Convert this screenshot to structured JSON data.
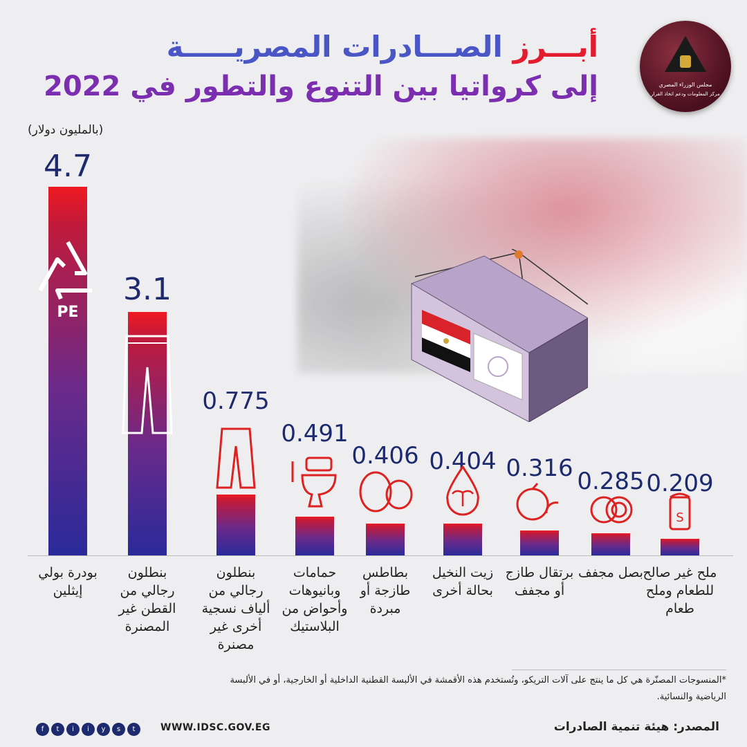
{
  "title": {
    "line1_accent": "أبـــرز",
    "line1_rest": " الصـــادرات المصريـــــة",
    "line2": "إلى كرواتيا بين التنوع والتطور في 2022"
  },
  "logo": {
    "line1": "مجلس الوزراء المصري",
    "line2": "مركز المعلومات ودعم اتخاذ القرار"
  },
  "unit_label": "(بالمليون دولار)",
  "colors": {
    "bar_top": "#f01a22",
    "bar_bottom": "#2a2a9a",
    "value_text": "#1e2a6e",
    "title_blue": "#4a55c6",
    "title_red": "#e21d2f",
    "title_purple": "#7b2fb0"
  },
  "chart_data": {
    "type": "bar",
    "title": "أبرز الصادرات المصرية إلى كرواتيا بين التنوع والتطور في 2022",
    "ylabel": "(بالمليون دولار)",
    "categories": [
      "بودرة بولي إيثلين",
      "بنطلون رجالي من القطن غير المصنرة",
      "بنطلون رجالي من ألياف نسجية أخرى غير مصنرة",
      "حمامات وبانيوهات وأحواض من البلاستيك",
      "بطاطس طازجة أو مبردة",
      "زيت النخيل بحالة أخرى",
      "برتقال طازج أو مجفف",
      "بصل مجفف",
      "ملح غير صالح للطعام وملح طعام"
    ],
    "labels": [
      "4.7",
      "3.1",
      "0.775",
      "0.491",
      "0.406",
      "0.404",
      "0.316",
      "0.285",
      "0.209"
    ],
    "values": [
      4.7,
      3.1,
      0.775,
      0.491,
      0.406,
      0.404,
      0.316,
      0.285,
      0.209
    ],
    "icons": [
      "recycle-pe-icon",
      "jeans-icon",
      "trousers-icon",
      "toilet-icon",
      "potato-icon",
      "palm-oil-drop-icon",
      "orange-icon",
      "onion-icon",
      "salt-shaker-icon"
    ],
    "ylim": [
      0,
      4.7
    ],
    "grid": false,
    "legend": "none"
  },
  "recycle_label": "PE",
  "footnote": "*المنسوجات المصنّرة هي كل ما ينتج على آلات التريكو، وتُستخدم هذه الأقمشة في الألبسة القطنية الداخلية أو الخارجية، أو في الألبسة الرياضية والنسائية.",
  "source": "المصدر: هيئة تنمية الصادرات",
  "website": "WWW.IDSC.GOV.EG",
  "socials": [
    "f",
    "t",
    "ig",
    "in",
    "yt",
    "sc",
    "tg"
  ]
}
